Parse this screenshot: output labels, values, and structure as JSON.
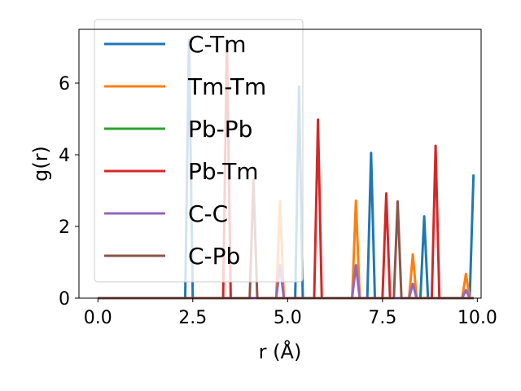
{
  "chart_data": {
    "type": "line",
    "xlabel": "r (Å)",
    "ylabel": "g(r)",
    "xlim": [
      -0.5,
      10.1
    ],
    "ylim": [
      0,
      7.5
    ],
    "xticks": [
      0.0,
      2.5,
      5.0,
      7.5,
      10.0
    ],
    "xtick_labels": [
      "0.0",
      "2.5",
      "5.0",
      "7.5",
      "10.0"
    ],
    "yticks": [
      0,
      2,
      4,
      6
    ],
    "ytick_labels": [
      "0",
      "2",
      "4",
      "6"
    ],
    "grid": false,
    "legend_position": "upper-left",
    "x": [
      0.0,
      2.2,
      2.3,
      2.4,
      2.5,
      2.6,
      3.3,
      3.4,
      3.5,
      4.0,
      4.1,
      4.2,
      4.7,
      4.8,
      4.9,
      5.2,
      5.3,
      5.4,
      5.7,
      5.8,
      5.9,
      6.7,
      6.8,
      6.9,
      7.1,
      7.2,
      7.3,
      7.5,
      7.6,
      7.7,
      7.8,
      7.9,
      8.0,
      8.2,
      8.3,
      8.4,
      8.5,
      8.6,
      8.7,
      8.8,
      8.9,
      9.0,
      9.6,
      9.7,
      9.8,
      9.9
    ],
    "series": [
      {
        "name": "C-Tm",
        "color": "#1f77b4",
        "values": [
          0,
          0,
          0,
          7.2,
          0,
          0,
          0,
          0,
          0,
          0,
          0,
          0,
          0,
          0,
          0,
          0,
          5.9,
          0,
          0,
          0,
          0,
          0,
          0,
          0,
          0,
          4.05,
          0,
          0,
          0,
          0,
          0,
          0,
          0,
          0,
          0,
          0,
          0,
          2.28,
          0,
          0,
          0,
          0,
          0,
          0,
          0,
          3.45
        ]
      },
      {
        "name": "Tm-Tm",
        "color": "#ff7f0e",
        "values": [
          0,
          0,
          0,
          0,
          0,
          0,
          0,
          0,
          0,
          0,
          0,
          0,
          0,
          2.72,
          0,
          0,
          0,
          0,
          0,
          0,
          0,
          0,
          2.72,
          0,
          0,
          0,
          0,
          0,
          0,
          0,
          0,
          0,
          0,
          0,
          1.22,
          0,
          0,
          0,
          0,
          0,
          0,
          0,
          0,
          0.68,
          0,
          0
        ]
      },
      {
        "name": "Pb-Pb",
        "color": "#2ca02c",
        "values": [
          0,
          0,
          0,
          0,
          0,
          0,
          0,
          0,
          0,
          0,
          0,
          0,
          0,
          0,
          0,
          0,
          0,
          0,
          0,
          0,
          0,
          0,
          0,
          0,
          0,
          0,
          0,
          0,
          0,
          0,
          0,
          0,
          0,
          0,
          0,
          0,
          0,
          0,
          0,
          0,
          0,
          0,
          0,
          0,
          0,
          0
        ]
      },
      {
        "name": "Pb-Tm",
        "color": "#d62728",
        "values": [
          0,
          0,
          0,
          0,
          0,
          0,
          0,
          7.2,
          0,
          0,
          0,
          0,
          0,
          0,
          0,
          0,
          0,
          0,
          0,
          4.98,
          0,
          0,
          0,
          0,
          0,
          0,
          0,
          0,
          2.92,
          0,
          0,
          0,
          0,
          0,
          0,
          0,
          0,
          0,
          0,
          0,
          4.25,
          0,
          0,
          0,
          0,
          0
        ]
      },
      {
        "name": "C-C",
        "color": "#9467bd",
        "values": [
          0,
          0,
          0,
          0,
          0,
          0,
          0,
          0,
          0,
          0,
          0,
          0,
          0,
          0.92,
          0,
          0,
          0,
          0,
          0,
          0,
          0,
          0,
          0.92,
          0,
          0,
          0,
          0,
          0,
          0,
          0,
          0,
          0,
          0,
          0,
          0.4,
          0,
          0,
          0,
          0,
          0,
          0,
          0,
          0,
          0.22,
          0,
          0
        ]
      },
      {
        "name": "C-Pb",
        "color": "#8c564b",
        "values": [
          0,
          0,
          0,
          0,
          0,
          0,
          0,
          0,
          0,
          0,
          3.3,
          0,
          0,
          0,
          0,
          0,
          0,
          0,
          0,
          0,
          0,
          0,
          0,
          0,
          0,
          0,
          0,
          0,
          0,
          0,
          0,
          2.7,
          0,
          0,
          0,
          0,
          0,
          0,
          0,
          0,
          0,
          0,
          0,
          0,
          0,
          0
        ]
      }
    ]
  }
}
